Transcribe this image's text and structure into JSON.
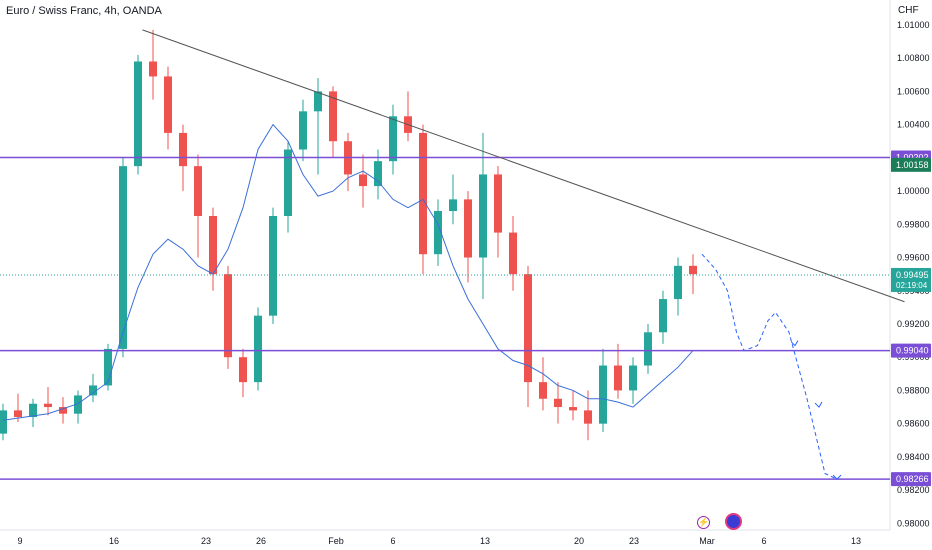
{
  "header": {
    "title": "Euro / Swiss Franc, 4h, OANDA",
    "currency": "CHF"
  },
  "colors": {
    "up": "#26a69a",
    "down": "#ef5350",
    "level": "#7a4fd6",
    "ma": "#3a6fd8",
    "trend": "#555555",
    "projection": "#2962ff",
    "price": "#26a69a",
    "price_dark": "#1b7d57"
  },
  "icons": [
    "lightning-icon",
    "record-icon"
  ],
  "chart_data": {
    "type": "candlestick",
    "title": "Euro / Swiss Franc, 4h, OANDA",
    "ylabel": "CHF",
    "ylim": [
      0.9796,
      1.0115
    ],
    "x_ticks": [
      "9",
      "16",
      "23",
      "26",
      "Feb",
      "6",
      "13",
      "20",
      "23",
      "Mar",
      "6",
      "13"
    ],
    "y_ticks": [
      "1.01000",
      "1.00800",
      "1.00600",
      "1.00400",
      "1.00200",
      "1.00000",
      "0.99800",
      "0.99600",
      "0.99400",
      "0.99200",
      "0.99000",
      "0.98800",
      "0.98600",
      "0.98400",
      "0.98200",
      "0.98000"
    ],
    "horizontal_levels": [
      {
        "label": "1.00202",
        "value": 1.00202
      },
      {
        "label": "0.99040",
        "value": 0.9904
      },
      {
        "label": "0.98266",
        "value": 0.98266
      }
    ],
    "price_labels": [
      {
        "label": "1.00158",
        "value": 1.00158
      },
      {
        "label": "0.99495",
        "value": 0.99495,
        "countdown": "02:19:04"
      }
    ],
    "trendline": {
      "from": [
        9.3,
        1.0097
      ],
      "to": [
        60.1,
        0.99334
      ]
    },
    "moving_average": [
      [
        0,
        0.9862
      ],
      [
        3,
        0.9866
      ],
      [
        5,
        0.9872
      ],
      [
        7,
        0.9885
      ],
      [
        8,
        0.9915
      ],
      [
        9,
        0.9942
      ],
      [
        10,
        0.9962
      ],
      [
        11,
        0.9971
      ],
      [
        12,
        0.9965
      ],
      [
        13,
        0.9955
      ],
      [
        14,
        0.995
      ],
      [
        15,
        0.9965
      ],
      [
        16,
        0.999
      ],
      [
        17,
        1.0025
      ],
      [
        18,
        1.004
      ],
      [
        19,
        1.003
      ],
      [
        20,
        1.001
      ],
      [
        21,
        0.9997
      ],
      [
        22,
        1.0
      ],
      [
        23,
        1.0008
      ],
      [
        24,
        1.0012
      ],
      [
        25,
        1.0006
      ],
      [
        26,
        0.9995
      ],
      [
        27,
        0.999
      ],
      [
        28,
        0.9995
      ],
      [
        29,
        0.998
      ],
      [
        30,
        0.9955
      ],
      [
        31,
        0.9935
      ],
      [
        32,
        0.992
      ],
      [
        33,
        0.9905
      ],
      [
        34,
        0.9898
      ],
      [
        35,
        0.9895
      ],
      [
        36,
        0.989
      ],
      [
        37,
        0.9883
      ],
      [
        38,
        0.988
      ],
      [
        39,
        0.9875
      ],
      [
        40,
        0.9875
      ],
      [
        41,
        0.9873
      ],
      [
        42,
        0.987
      ],
      [
        43,
        0.9878
      ],
      [
        44,
        0.9886
      ],
      [
        45,
        0.9894
      ],
      [
        46,
        0.9904
      ]
    ],
    "projection": [
      [
        46.6,
        0.9962
      ],
      [
        47.5,
        0.9953
      ],
      [
        48.3,
        0.994
      ],
      [
        48.9,
        0.9915
      ],
      [
        49.4,
        0.9904
      ],
      [
        50.3,
        0.9907
      ],
      [
        51.0,
        0.9922
      ],
      [
        51.5,
        0.9927
      ],
      [
        52.4,
        0.9915
      ],
      [
        53.6,
        0.9875
      ],
      [
        54.8,
        0.983
      ],
      [
        55.6,
        0.98266
      ]
    ],
    "projection_arrowheads": [
      [
        52.8,
        0.9907
      ],
      [
        54.4,
        0.987
      ]
    ],
    "ohlc": [
      [
        0.9854,
        0.9872,
        0.985,
        0.9868
      ],
      [
        0.9868,
        0.9878,
        0.9861,
        0.9864
      ],
      [
        0.9864,
        0.9875,
        0.9858,
        0.9872
      ],
      [
        0.9872,
        0.9882,
        0.9865,
        0.987
      ],
      [
        0.987,
        0.9876,
        0.986,
        0.9866
      ],
      [
        0.9866,
        0.988,
        0.986,
        0.9877
      ],
      [
        0.9877,
        0.989,
        0.9873,
        0.9883
      ],
      [
        0.9883,
        0.9908,
        0.988,
        0.9905
      ],
      [
        0.9905,
        1.002,
        0.99,
        1.0015
      ],
      [
        1.0015,
        1.0082,
        1.001,
        1.0078
      ],
      [
        1.0078,
        1.0097,
        1.0055,
        1.0069
      ],
      [
        1.0069,
        1.0075,
        1.0025,
        1.0035
      ],
      [
        1.0035,
        1.004,
        1.0,
        1.0015
      ],
      [
        1.0015,
        1.0022,
        0.996,
        0.9985
      ],
      [
        0.9985,
        0.999,
        0.994,
        0.995
      ],
      [
        0.995,
        0.9955,
        0.9893,
        0.99
      ],
      [
        0.99,
        0.9905,
        0.9876,
        0.9885
      ],
      [
        0.9885,
        0.993,
        0.988,
        0.9925
      ],
      [
        0.9925,
        0.999,
        0.992,
        0.9985
      ],
      [
        0.9985,
        1.003,
        0.9975,
        1.0025
      ],
      [
        1.0025,
        1.0055,
        1.0018,
        1.0048
      ],
      [
        1.0048,
        1.0068,
        1.001,
        1.006
      ],
      [
        1.006,
        1.0063,
        1.002,
        1.003
      ],
      [
        1.003,
        1.0035,
        1.0,
        1.001
      ],
      [
        1.001,
        1.0022,
        0.999,
        1.0003
      ],
      [
        1.0003,
        1.0025,
        0.9995,
        1.0018
      ],
      [
        1.0018,
        1.0052,
        1.001,
        1.0045
      ],
      [
        1.0045,
        1.006,
        1.003,
        1.0035
      ],
      [
        1.0035,
        1.004,
        0.995,
        0.9962
      ],
      [
        0.9962,
        0.9995,
        0.9955,
        0.9988
      ],
      [
        0.9988,
        1.001,
        0.998,
        0.9995
      ],
      [
        0.9995,
        1.0,
        0.9945,
        0.996
      ],
      [
        0.996,
        1.0035,
        0.9935,
        1.001
      ],
      [
        1.001,
        1.0015,
        0.996,
        0.9975
      ],
      [
        0.9975,
        0.9985,
        0.994,
        0.995
      ],
      [
        0.995,
        0.9955,
        0.987,
        0.9885
      ],
      [
        0.9885,
        0.99,
        0.9868,
        0.9875
      ],
      [
        0.9875,
        0.9885,
        0.986,
        0.987
      ],
      [
        0.987,
        0.988,
        0.9862,
        0.9868
      ],
      [
        0.9868,
        0.988,
        0.985,
        0.986
      ],
      [
        0.986,
        0.9905,
        0.9855,
        0.9895
      ],
      [
        0.9895,
        0.9908,
        0.9875,
        0.988
      ],
      [
        0.988,
        0.99,
        0.9872,
        0.9895
      ],
      [
        0.9895,
        0.992,
        0.989,
        0.9915
      ],
      [
        0.9915,
        0.994,
        0.9908,
        0.9935
      ],
      [
        0.9935,
        0.996,
        0.9925,
        0.9955
      ],
      [
        0.9955,
        0.9962,
        0.9938,
        0.995
      ]
    ]
  }
}
